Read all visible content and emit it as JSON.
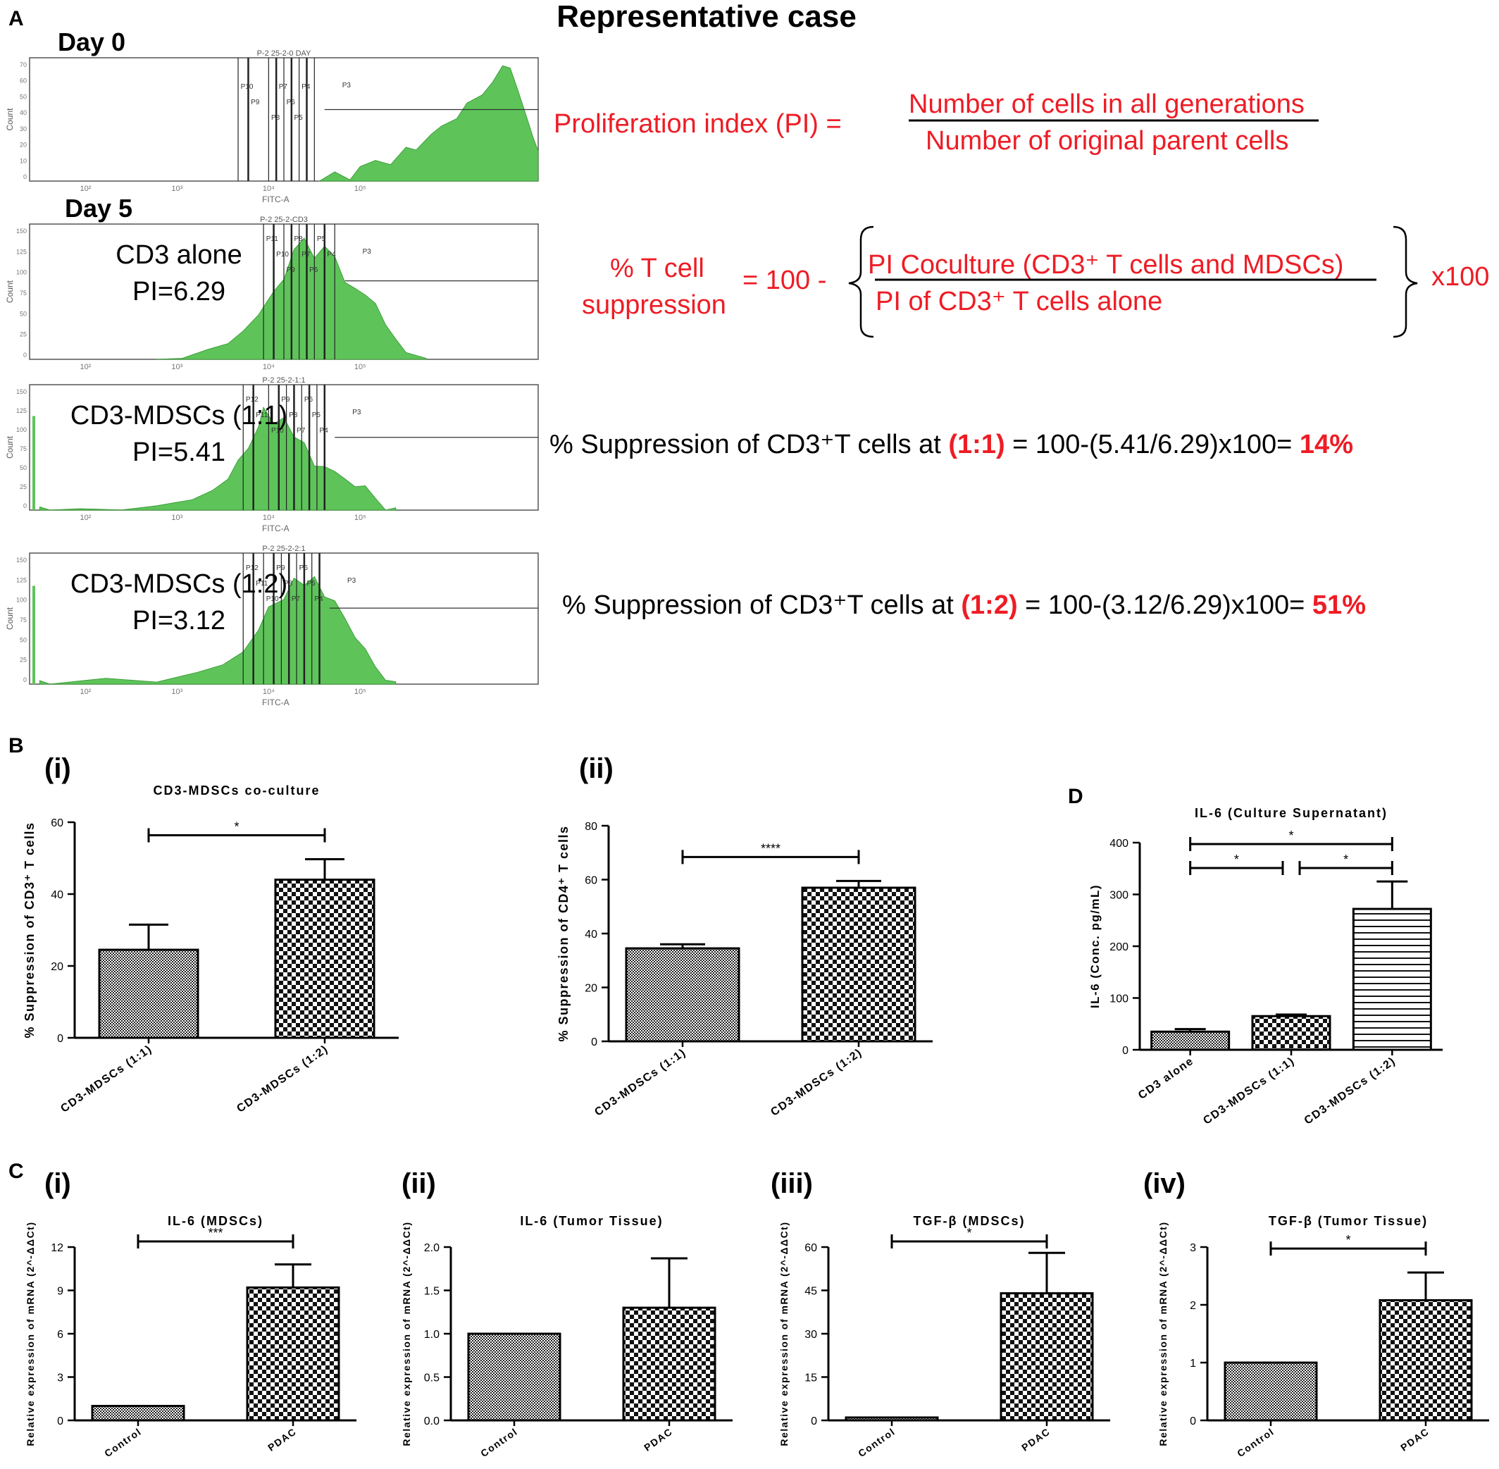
{
  "figure": {
    "panel_A": {
      "letter": "A",
      "title": "Representative case",
      "histograms": [
        {
          "day_label": "Day 0",
          "header": "P-2 25-2-0 DAY",
          "sample_label": "",
          "pi_label": "",
          "xlabel": "FITC-A",
          "ylabel": "Count",
          "yticks": [
            "0",
            "10",
            "20",
            "30",
            "40",
            "50",
            "60",
            "70"
          ],
          "xticks": [
            "10²",
            "10³",
            "10⁴",
            "10⁵"
          ],
          "gates": [
            "P10",
            "P9",
            "P8",
            "P7",
            "P6",
            "P5",
            "P4",
            "P3"
          ]
        },
        {
          "day_label": "Day 5",
          "header": "P-2 25-2-CD3",
          "sample_label": "CD3 alone",
          "pi_label": "PI=6.29",
          "xlabel": "",
          "ylabel": "Count",
          "yticks": [
            "0",
            "25",
            "50",
            "75",
            "100",
            "125",
            "150"
          ],
          "xticks": [
            "10²",
            "10³",
            "10⁴",
            "10⁵"
          ],
          "gates": [
            "P11",
            "P10",
            "P9",
            "P8",
            "P7",
            "P6",
            "P5",
            "P4",
            "P3"
          ]
        },
        {
          "day_label": "",
          "header": "P-2 25-2-1:1",
          "sample_label": "CD3-MDSCs (1:1)",
          "pi_label": "PI=5.41",
          "xlabel": "FITC-A",
          "ylabel": "Count",
          "yticks": [
            "0",
            "25",
            "50",
            "75",
            "100",
            "125",
            "150"
          ],
          "xticks": [
            "10²",
            "10³",
            "10⁴",
            "10⁵"
          ],
          "gates": [
            "P12",
            "P11",
            "P10",
            "P9",
            "P8",
            "P7",
            "P6",
            "P5",
            "P4",
            "P3"
          ]
        },
        {
          "day_label": "",
          "header": "P-2 25-2-2:1",
          "sample_label": "CD3-MDSCs (1:2)",
          "pi_label": "PI=3.12",
          "xlabel": "FITC-A",
          "ylabel": "Count",
          "yticks": [
            "0",
            "25",
            "50",
            "75",
            "100",
            "125",
            "150"
          ],
          "xticks": [
            "10²",
            "10³",
            "10⁴",
            "10⁵"
          ],
          "gates": [
            "P12",
            "P11",
            "P10",
            "P9",
            "P8",
            "P7",
            "P6",
            "P5",
            "P4",
            "P3"
          ]
        }
      ],
      "formulas": {
        "pi_lhs": "Proliferation index (PI) =",
        "pi_num": "Number of cells in all generations",
        "pi_den": "Number of original parent cells",
        "supp_lhs_1": "% T cell",
        "supp_lhs_2": "suppression",
        "supp_eq": "= 100 -",
        "supp_num": "PI Coculture (CD3⁺ T cells and MDSCs)",
        "supp_den": "PI of CD3⁺ T cells alone",
        "supp_mult": "x100",
        "calc1_a": "% Suppression of CD3⁺T cells at ",
        "calc1_ratio": "(1:1)",
        "calc1_b": " = 100-(5.41/6.29)x100= ",
        "calc1_result": "14%",
        "calc2_a": "% Suppression of CD3⁺T cells at ",
        "calc2_ratio": "(1:2)",
        "calc2_b": " = 100-(3.12/6.29)x100=  ",
        "calc2_result": "51%"
      }
    },
    "panel_B": {
      "letter": "B",
      "sub_i": "(i)",
      "sub_ii": "(ii)"
    },
    "panel_C": {
      "letter": "C",
      "sub_i": "(i)",
      "sub_ii": "(ii)",
      "sub_iii": "(iii)",
      "sub_iv": "(iv)"
    },
    "panel_D": {
      "letter": "D"
    }
  },
  "chart_data": [
    {
      "id": "B-i",
      "type": "bar",
      "title": "CD3-MDSCs co-culture",
      "ylabel": "% Suppression of CD3⁺ T cells",
      "xlabel": "",
      "categories": [
        "CD3-MDSCs (1:1)",
        "CD3-MDSCs (1:2)"
      ],
      "values": [
        24.5,
        44
      ],
      "errors": [
        7,
        5.7
      ],
      "patterns": [
        "fine",
        "check"
      ],
      "ylim": [
        0,
        60
      ],
      "yticks": [
        "0",
        "20",
        "40",
        "60"
      ],
      "significance": [
        {
          "from": 0,
          "to": 1,
          "label": "*"
        }
      ]
    },
    {
      "id": "B-ii",
      "type": "bar",
      "title": "",
      "ylabel": "% Suppression of CD4⁺ T cells",
      "xlabel": "",
      "categories": [
        "CD3-MDSCs (1:1)",
        "CD3-MDSCs (1:2)"
      ],
      "values": [
        34.5,
        57
      ],
      "errors": [
        1.5,
        2.5
      ],
      "patterns": [
        "fine",
        "check"
      ],
      "ylim": [
        0,
        80
      ],
      "yticks": [
        "0",
        "20",
        "40",
        "60",
        "80"
      ],
      "significance": [
        {
          "from": 0,
          "to": 1,
          "label": "****"
        }
      ]
    },
    {
      "id": "D",
      "type": "bar",
      "title": "IL-6 (Culture Supernatant)",
      "ylabel": "IL-6 (Conc. pg/mL)",
      "xlabel": "",
      "categories": [
        "CD3 alone",
        "CD3-MDSCs (1:1)",
        "CD3-MDSCs (1:2)"
      ],
      "values": [
        35,
        65,
        272
      ],
      "errors": [
        5,
        3,
        53
      ],
      "patterns": [
        "fine",
        "check",
        "hstripe"
      ],
      "ylim": [
        0,
        400
      ],
      "yticks": [
        "0",
        "100",
        "200",
        "300",
        "400"
      ],
      "significance": [
        {
          "from": 0,
          "to": 1,
          "label": "*",
          "level": 0
        },
        {
          "from": 1,
          "to": 2,
          "label": "*",
          "level": 0
        },
        {
          "from": 0,
          "to": 2,
          "label": "*",
          "level": 1
        }
      ]
    },
    {
      "id": "C-i",
      "type": "bar",
      "title": "IL-6 (MDSCs)",
      "ylabel": "Relative expression of mRNA (2^-ΔΔCt)",
      "xlabel": "",
      "categories": [
        "Control",
        "PDAC"
      ],
      "values": [
        1,
        9.2
      ],
      "errors": [
        0,
        1.6
      ],
      "patterns": [
        "fine",
        "check"
      ],
      "ylim": [
        0,
        12
      ],
      "yticks": [
        "0",
        "3",
        "6",
        "9",
        "12"
      ],
      "significance": [
        {
          "from": 0,
          "to": 1,
          "label": "***"
        }
      ]
    },
    {
      "id": "C-ii",
      "type": "bar",
      "title": "IL-6 (Tumor Tissue)",
      "ylabel": "Relative expression of mRNA (2^-ΔΔCt)",
      "xlabel": "",
      "categories": [
        "Control",
        "PDAC"
      ],
      "values": [
        1,
        1.3
      ],
      "errors": [
        0,
        0.57
      ],
      "patterns": [
        "fine",
        "check"
      ],
      "ylim": [
        0,
        2
      ],
      "yticks": [
        "0.0",
        "0.5",
        "1.0",
        "1.5",
        "2.0"
      ],
      "significance": []
    },
    {
      "id": "C-iii",
      "type": "bar",
      "title": "TGF-β (MDSCs)",
      "ylabel": "Relative expression of mRNA (2^-ΔΔCt)",
      "xlabel": "",
      "categories": [
        "Control",
        "PDAC"
      ],
      "values": [
        1,
        44
      ],
      "errors": [
        0,
        14
      ],
      "patterns": [
        "fine",
        "check"
      ],
      "ylim": [
        0,
        60
      ],
      "yticks": [
        "0",
        "15",
        "30",
        "45",
        "60"
      ],
      "significance": [
        {
          "from": 0,
          "to": 1,
          "label": "*"
        }
      ]
    },
    {
      "id": "C-iv",
      "type": "bar",
      "title": "TGF-β (Tumor Tissue)",
      "ylabel": "Relative expression of mRNA (2^-ΔΔCt)",
      "xlabel": "",
      "categories": [
        "Control",
        "PDAC"
      ],
      "values": [
        1,
        2.08
      ],
      "errors": [
        0,
        0.48
      ],
      "patterns": [
        "fine",
        "check"
      ],
      "ylim": [
        0,
        3
      ],
      "yticks": [
        "0",
        "1",
        "2",
        "3"
      ],
      "significance": [
        {
          "from": 0,
          "to": 1,
          "label": "*"
        }
      ]
    }
  ]
}
